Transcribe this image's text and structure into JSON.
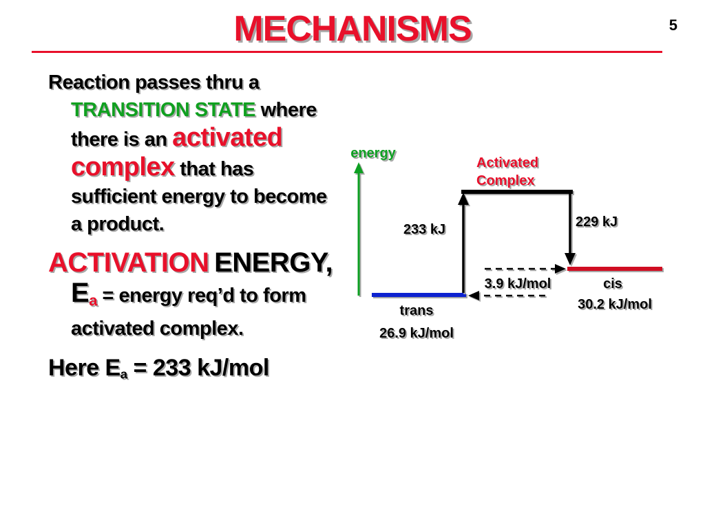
{
  "slide": {
    "title": "MECHANISMS",
    "number": "5"
  },
  "text": {
    "p1_line1": "Reaction passes thru a",
    "p1_transition_state": "TRANSITION STATE",
    "p1_where": "where there is an",
    "p1_activated": "activated",
    "p1_complex": "complex",
    "p1_tail": "that has sufficient energy to become a product.",
    "p2_activation": "ACTIVATION",
    "p2_energy": "ENERGY, E",
    "p2_sub": "a",
    "p2_equals": "=",
    "p2_def": "energy req’d to form activated complex.",
    "p3_here": "Here E",
    "p3_sub": "a",
    "p3_value": "= 233 kJ/mol"
  },
  "diagram": {
    "axis_label": "energy",
    "complex_label_1": "Activated",
    "complex_label_2": "Complex",
    "forward_energy": "233 kJ",
    "reverse_energy": "229 kJ",
    "difference": "3.9 kJ/mol",
    "trans_label": "trans",
    "trans_energy": "26.9 kJ/mol",
    "cis_label": "cis",
    "cis_energy": "30.2 kJ/mol",
    "colors": {
      "axis": "#10a020",
      "trans_level": "#0a20d0",
      "cis_level": "#d01020",
      "complex_level": "#000000",
      "complex_label": "#e8102a"
    }
  }
}
